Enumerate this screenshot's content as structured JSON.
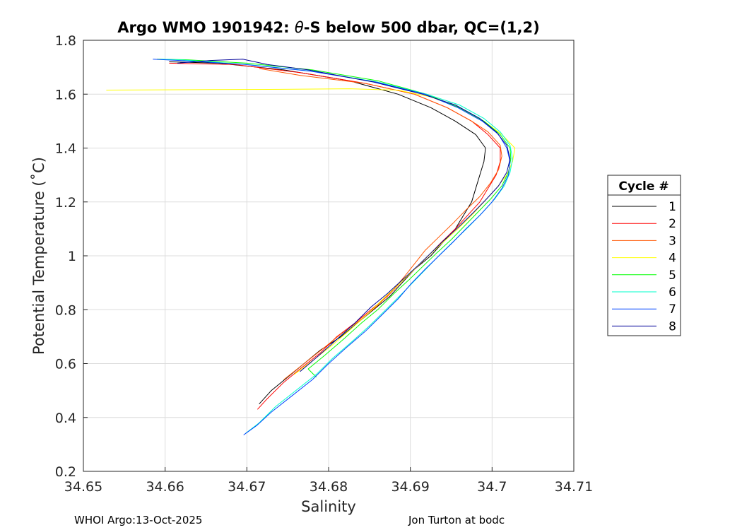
{
  "chart_data": {
    "type": "line",
    "title_prefix": "Argo WMO 1901942: ",
    "title_symbol": "θ",
    "title_suffix": "-S below 500 dbar,  QC=(1,2)",
    "xlabel": "Salinity",
    "ylabel": "Potential Temperature (˚C)",
    "xlim": [
      34.65,
      34.71
    ],
    "ylim": [
      0.2,
      1.8
    ],
    "xticks": [
      "34.65",
      "34.66",
      "34.67",
      "34.68",
      "34.69",
      "34.7",
      "34.71"
    ],
    "yticks": [
      "0.2",
      "0.4",
      "0.6",
      "0.8",
      "1",
      "1.2",
      "1.4",
      "1.6",
      "1.8"
    ],
    "grid": true,
    "legend_title": "Cycle #",
    "legend_position": "outside-right",
    "series": [
      {
        "name": "1",
        "color": "#000000",
        "points": [
          [
            34.6715,
            0.45
          ],
          [
            34.673,
            0.5
          ],
          [
            34.675,
            0.55
          ],
          [
            34.677,
            0.6
          ],
          [
            34.679,
            0.65
          ],
          [
            34.6815,
            0.7
          ],
          [
            34.6835,
            0.75
          ],
          [
            34.6855,
            0.8
          ],
          [
            34.6875,
            0.85
          ],
          [
            34.689,
            0.9
          ],
          [
            34.6905,
            0.95
          ],
          [
            34.6925,
            1.0
          ],
          [
            34.694,
            1.05
          ],
          [
            34.6955,
            1.1
          ],
          [
            34.6965,
            1.15
          ],
          [
            34.6975,
            1.2
          ],
          [
            34.698,
            1.25
          ],
          [
            34.6985,
            1.3
          ],
          [
            34.699,
            1.35
          ],
          [
            34.6992,
            1.4
          ],
          [
            34.698,
            1.45
          ],
          [
            34.6955,
            1.5
          ],
          [
            34.6925,
            1.55
          ],
          [
            34.6885,
            1.6
          ],
          [
            34.6825,
            1.65
          ],
          [
            34.6745,
            1.69
          ],
          [
            34.6665,
            1.715
          ],
          [
            34.6605,
            1.72
          ]
        ]
      },
      {
        "name": "2",
        "color": "#ff0000",
        "points": [
          [
            34.6713,
            0.43
          ],
          [
            34.6725,
            0.47
          ],
          [
            34.6745,
            0.53
          ],
          [
            34.6765,
            0.58
          ],
          [
            34.679,
            0.64
          ],
          [
            34.681,
            0.7
          ],
          [
            34.6832,
            0.75
          ],
          [
            34.6852,
            0.8
          ],
          [
            34.6872,
            0.85
          ],
          [
            34.6888,
            0.9
          ],
          [
            34.6905,
            0.95
          ],
          [
            34.6922,
            1.0
          ],
          [
            34.6938,
            1.05
          ],
          [
            34.6955,
            1.1
          ],
          [
            34.697,
            1.15
          ],
          [
            34.6985,
            1.2
          ],
          [
            34.6995,
            1.25
          ],
          [
            34.7005,
            1.3
          ],
          [
            34.701,
            1.35
          ],
          [
            34.701,
            1.4
          ],
          [
            34.6995,
            1.45
          ],
          [
            34.6975,
            1.5
          ],
          [
            34.6945,
            1.55
          ],
          [
            34.6905,
            1.6
          ],
          [
            34.6845,
            1.64
          ],
          [
            34.6765,
            1.68
          ],
          [
            34.6685,
            1.71
          ],
          [
            34.6605,
            1.715
          ]
        ]
      },
      {
        "name": "3",
        "color": "#ff5500",
        "points": [
          [
            34.6745,
            0.54
          ],
          [
            34.677,
            0.6
          ],
          [
            34.6795,
            0.66
          ],
          [
            34.6815,
            0.71
          ],
          [
            34.6838,
            0.76
          ],
          [
            34.6858,
            0.81
          ],
          [
            34.6878,
            0.87
          ],
          [
            34.6892,
            0.92
          ],
          [
            34.6905,
            0.97
          ],
          [
            34.6918,
            1.02
          ],
          [
            34.6935,
            1.07
          ],
          [
            34.6952,
            1.12
          ],
          [
            34.6968,
            1.17
          ],
          [
            34.6985,
            1.22
          ],
          [
            34.6998,
            1.27
          ],
          [
            34.7008,
            1.32
          ],
          [
            34.7012,
            1.37
          ],
          [
            34.701,
            1.41
          ],
          [
            34.6995,
            1.46
          ],
          [
            34.6975,
            1.5
          ],
          [
            34.6945,
            1.55
          ],
          [
            34.6905,
            1.6
          ],
          [
            34.6845,
            1.64
          ],
          [
            34.6765,
            1.67
          ],
          [
            34.6715,
            1.695
          ]
        ]
      },
      {
        "name": "4",
        "color": "#ffff00",
        "points": [
          [
            34.6758,
            0.56
          ],
          [
            34.678,
            0.61
          ],
          [
            34.6805,
            0.67
          ],
          [
            34.6828,
            0.73
          ],
          [
            34.685,
            0.79
          ],
          [
            34.687,
            0.85
          ],
          [
            34.6888,
            0.9
          ],
          [
            34.6905,
            0.95
          ],
          [
            34.6922,
            1.0
          ],
          [
            34.694,
            1.05
          ],
          [
            34.6958,
            1.1
          ],
          [
            34.6975,
            1.15
          ],
          [
            34.699,
            1.2
          ],
          [
            34.7005,
            1.25
          ],
          [
            34.7018,
            1.3
          ],
          [
            34.7025,
            1.35
          ],
          [
            34.7028,
            1.4
          ],
          [
            34.7012,
            1.45
          ],
          [
            34.699,
            1.5
          ],
          [
            34.696,
            1.55
          ],
          [
            34.6925,
            1.59
          ],
          [
            34.6885,
            1.615
          ],
          [
            34.6825,
            1.62
          ],
          [
            34.6745,
            1.618
          ],
          [
            34.6655,
            1.617
          ],
          [
            34.6528,
            1.615
          ]
        ]
      },
      {
        "name": "5",
        "color": "#00ff00",
        "points": [
          [
            34.6785,
            0.55
          ],
          [
            34.6775,
            0.58
          ],
          [
            34.6795,
            0.63
          ],
          [
            34.6818,
            0.69
          ],
          [
            34.684,
            0.75
          ],
          [
            34.686,
            0.8
          ],
          [
            34.688,
            0.86
          ],
          [
            34.6898,
            0.91
          ],
          [
            34.6915,
            0.96
          ],
          [
            34.6932,
            1.01
          ],
          [
            34.695,
            1.06
          ],
          [
            34.6966,
            1.11
          ],
          [
            34.6982,
            1.16
          ],
          [
            34.6998,
            1.21
          ],
          [
            34.7012,
            1.26
          ],
          [
            34.702,
            1.31
          ],
          [
            34.7023,
            1.36
          ],
          [
            34.7022,
            1.4
          ],
          [
            34.701,
            1.45
          ],
          [
            34.699,
            1.5
          ],
          [
            34.696,
            1.55
          ],
          [
            34.692,
            1.6
          ],
          [
            34.686,
            1.65
          ],
          [
            34.678,
            1.69
          ],
          [
            34.67,
            1.715
          ],
          [
            34.6625,
            1.728
          ],
          [
            34.659,
            1.73
          ]
        ]
      },
      {
        "name": "6",
        "color": "#00ffcc",
        "points": [
          [
            34.6698,
            0.34
          ],
          [
            34.6715,
            0.38
          ],
          [
            34.6735,
            0.44
          ],
          [
            34.676,
            0.5
          ],
          [
            34.6785,
            0.56
          ],
          [
            34.6805,
            0.62
          ],
          [
            34.6828,
            0.68
          ],
          [
            34.685,
            0.74
          ],
          [
            34.687,
            0.8
          ],
          [
            34.689,
            0.86
          ],
          [
            34.6906,
            0.91
          ],
          [
            34.6922,
            0.96
          ],
          [
            34.6938,
            1.01
          ],
          [
            34.6955,
            1.06
          ],
          [
            34.6972,
            1.11
          ],
          [
            34.6988,
            1.16
          ],
          [
            34.7003,
            1.21
          ],
          [
            34.7015,
            1.26
          ],
          [
            34.7022,
            1.31
          ],
          [
            34.7025,
            1.36
          ],
          [
            34.7022,
            1.41
          ],
          [
            34.701,
            1.46
          ],
          [
            34.699,
            1.51
          ],
          [
            34.696,
            1.56
          ],
          [
            34.692,
            1.6
          ],
          [
            34.686,
            1.645
          ],
          [
            34.678,
            1.685
          ],
          [
            34.67,
            1.71
          ],
          [
            34.662,
            1.727
          ],
          [
            34.6595,
            1.73
          ]
        ]
      },
      {
        "name": "7",
        "color": "#0044ff",
        "points": [
          [
            34.6696,
            0.335
          ],
          [
            34.6712,
            0.37
          ],
          [
            34.673,
            0.42
          ],
          [
            34.6755,
            0.48
          ],
          [
            34.678,
            0.54
          ],
          [
            34.68,
            0.6
          ],
          [
            34.6822,
            0.66
          ],
          [
            34.6845,
            0.72
          ],
          [
            34.6865,
            0.78
          ],
          [
            34.6885,
            0.84
          ],
          [
            34.6902,
            0.9
          ],
          [
            34.6918,
            0.95
          ],
          [
            34.6935,
            1.0
          ],
          [
            34.6952,
            1.05
          ],
          [
            34.6968,
            1.1
          ],
          [
            34.6985,
            1.15
          ],
          [
            34.7,
            1.2
          ],
          [
            34.7012,
            1.25
          ],
          [
            34.702,
            1.3
          ],
          [
            34.7022,
            1.35
          ],
          [
            34.7018,
            1.4
          ],
          [
            34.7008,
            1.45
          ],
          [
            34.6988,
            1.5
          ],
          [
            34.6958,
            1.55
          ],
          [
            34.6918,
            1.6
          ],
          [
            34.6858,
            1.645
          ],
          [
            34.6778,
            1.685
          ],
          [
            34.6698,
            1.71
          ],
          [
            34.6618,
            1.725
          ],
          [
            34.6585,
            1.73
          ]
        ]
      },
      {
        "name": "8",
        "color": "#000099",
        "points": [
          [
            34.6765,
            0.57
          ],
          [
            34.6788,
            0.63
          ],
          [
            34.681,
            0.69
          ],
          [
            34.6832,
            0.75
          ],
          [
            34.6852,
            0.81
          ],
          [
            34.6872,
            0.86
          ],
          [
            34.689,
            0.91
          ],
          [
            34.6908,
            0.96
          ],
          [
            34.6925,
            1.01
          ],
          [
            34.6942,
            1.06
          ],
          [
            34.696,
            1.11
          ],
          [
            34.6977,
            1.16
          ],
          [
            34.6993,
            1.21
          ],
          [
            34.7008,
            1.26
          ],
          [
            34.7018,
            1.31
          ],
          [
            34.7022,
            1.36
          ],
          [
            34.7018,
            1.41
          ],
          [
            34.7005,
            1.46
          ],
          [
            34.6985,
            1.51
          ],
          [
            34.6955,
            1.56
          ],
          [
            34.6915,
            1.6
          ],
          [
            34.6855,
            1.645
          ],
          [
            34.6775,
            1.69
          ],
          [
            34.6725,
            1.71
          ],
          [
            34.6695,
            1.73
          ],
          [
            34.6655,
            1.725
          ],
          [
            34.6615,
            1.715
          ]
        ]
      }
    ]
  },
  "footer": {
    "left": "WHOI Argo:13-Oct-2025",
    "right": "Jon Turton at bodc"
  }
}
